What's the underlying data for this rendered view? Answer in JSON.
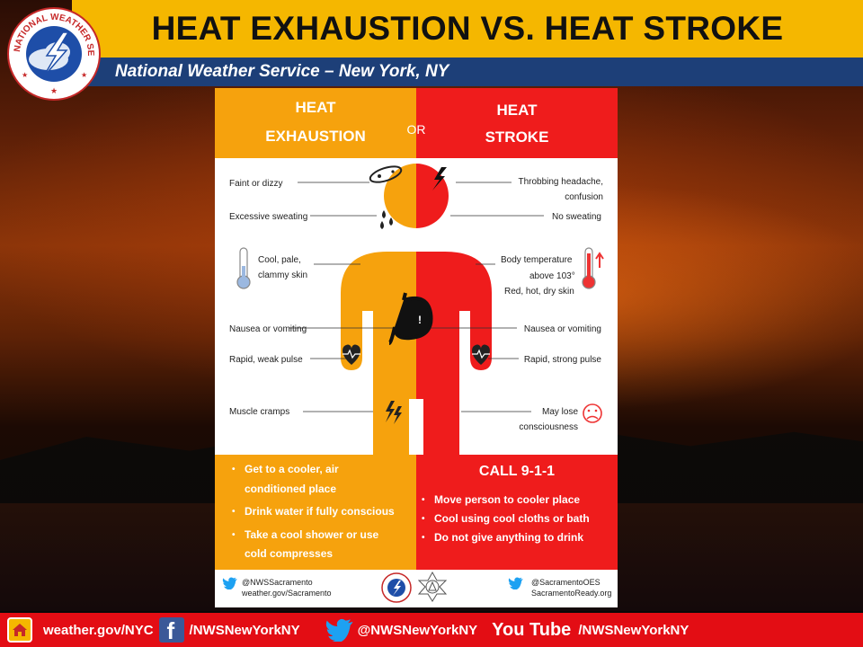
{
  "header": {
    "title": "HEAT EXHAUSTION VS. HEAT STROKE",
    "subtitle": "National Weather Service – New York, NY",
    "logo_text": "NATIONAL WEATHER SERVICE"
  },
  "infographic": {
    "left_title_1": "HEAT",
    "left_title_2": "EXHAUSTION",
    "or": "OR",
    "right_title_1": "HEAT",
    "right_title_2": "STROKE",
    "left_symptoms": {
      "faint": "Faint or dizzy",
      "sweating": "Excessive sweating",
      "skin_1": "Cool, pale,",
      "skin_2": "clammy skin",
      "nausea": "Nausea or vomiting",
      "pulse": "Rapid, weak pulse",
      "cramps": "Muscle cramps"
    },
    "right_symptoms": {
      "headache_1": "Throbbing headache,",
      "headache_2": "confusion",
      "no_sweat": "No sweating",
      "temp_1": "Body temperature",
      "temp_2": "above 103°",
      "temp_3": "Red, hot, dry skin",
      "nausea": "Nausea or vomiting",
      "pulse": "Rapid, strong pulse",
      "lose_1": "May lose",
      "lose_2": "consciousness"
    },
    "left_actions": [
      "Get to a cooler, air",
      "conditioned place",
      "Drink water if fully conscious",
      "Take a cool shower or use",
      "cold compresses"
    ],
    "call": "CALL 9-1-1",
    "right_actions": [
      "Move person to cooler place",
      "Cool using cool cloths or bath",
      "Do not give anything to drink"
    ],
    "footer": {
      "left_handle": "@NWSSacramento",
      "left_site": "weather.gov/Sacramento",
      "right_handle": "@SacramentoOES",
      "right_site": "SacramentoReady.org"
    }
  },
  "social_bar": {
    "website": "weather.gov/NYC",
    "facebook": "/NWSNewYorkNY",
    "twitter": "@NWSNewYorkNY",
    "youtube_label": "You Tube",
    "youtube": "/NWSNewYorkNY"
  },
  "colors": {
    "banner_yellow": "#f5b700",
    "banner_blue": "#1d3f78",
    "exhaustion_orange": "#f6a20d",
    "stroke_red": "#ef1c1c",
    "social_red": "#e30d14"
  }
}
